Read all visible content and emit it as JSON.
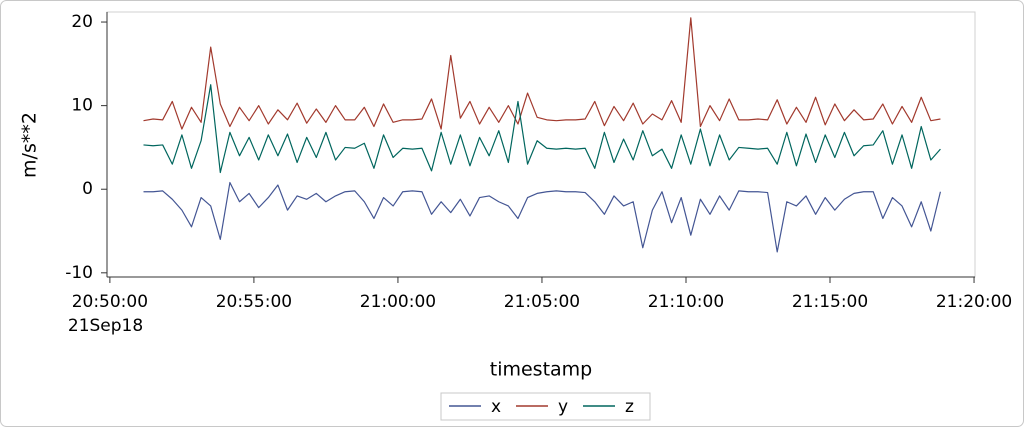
{
  "chart_data": {
    "type": "line",
    "xlabel": "timestamp",
    "ylabel": "m/s**2",
    "x": [
      "20:51:10",
      "20:51:30",
      "20:51:50",
      "20:52:10",
      "20:52:30",
      "20:52:50",
      "20:53:10",
      "20:53:30",
      "20:53:50",
      "20:54:10",
      "20:54:30",
      "20:54:50",
      "20:55:10",
      "20:55:30",
      "20:55:50",
      "20:56:10",
      "20:56:30",
      "20:56:50",
      "20:57:10",
      "20:57:30",
      "20:57:50",
      "20:58:10",
      "20:58:30",
      "20:58:50",
      "20:59:10",
      "20:59:30",
      "20:59:50",
      "21:00:10",
      "21:00:30",
      "21:00:50",
      "21:01:10",
      "21:01:30",
      "21:01:50",
      "21:02:10",
      "21:02:30",
      "21:02:50",
      "21:03:10",
      "21:03:30",
      "21:03:50",
      "21:04:10",
      "21:04:30",
      "21:04:50",
      "21:05:10",
      "21:05:30",
      "21:05:50",
      "21:06:10",
      "21:06:30",
      "21:06:50",
      "21:07:10",
      "21:07:30",
      "21:07:50",
      "21:08:10",
      "21:08:30",
      "21:08:50",
      "21:09:10",
      "21:09:30",
      "21:09:50",
      "21:10:10",
      "21:10:30",
      "21:10:50",
      "21:11:10",
      "21:11:30",
      "21:11:50",
      "21:12:10",
      "21:12:30",
      "21:12:50",
      "21:13:10",
      "21:13:30",
      "21:13:50",
      "21:14:10",
      "21:14:30",
      "21:14:50",
      "21:15:10",
      "21:15:30",
      "21:15:50",
      "21:16:10",
      "21:16:30",
      "21:16:50",
      "21:17:10",
      "21:17:30",
      "21:17:50",
      "21:18:10",
      "21:18:30",
      "21:18:50"
    ],
    "series": [
      {
        "name": "x",
        "color": "#445694",
        "values": [
          -0.3,
          -0.3,
          -0.2,
          -1.2,
          -2.5,
          -4.5,
          -1.0,
          -2.0,
          -6.0,
          0.8,
          -1.5,
          -0.5,
          -2.2,
          -1.0,
          0.5,
          -2.5,
          -0.8,
          -1.2,
          -0.5,
          -1.5,
          -0.8,
          -0.3,
          -0.2,
          -1.5,
          -3.5,
          -1.0,
          -2.0,
          -0.3,
          -0.2,
          -0.3,
          -3.0,
          -1.5,
          -2.8,
          -1.2,
          -3.2,
          -1.0,
          -0.8,
          -1.5,
          -2.0,
          -3.5,
          -1.0,
          -0.5,
          -0.3,
          -0.2,
          -0.3,
          -0.3,
          -0.4,
          -1.5,
          -3.0,
          -0.8,
          -2.0,
          -1.5,
          -7.0,
          -2.5,
          -0.3,
          -4.0,
          -1.0,
          -5.5,
          -1.2,
          -3.0,
          -0.8,
          -2.5,
          -0.2,
          -0.3,
          -0.3,
          -0.4,
          -7.5,
          -1.5,
          -2.0,
          -0.8,
          -3.0,
          -1.0,
          -2.5,
          -1.2,
          -0.5,
          -0.3,
          -0.3,
          -3.5,
          -1.0,
          -2.0,
          -4.5,
          -1.5,
          -5.0,
          -0.3
        ]
      },
      {
        "name": "y",
        "color": "#a23a2e",
        "values": [
          8.2,
          8.4,
          8.3,
          10.5,
          7.2,
          9.8,
          8.0,
          17.0,
          10.2,
          7.5,
          9.8,
          8.2,
          10.0,
          7.8,
          9.5,
          8.3,
          10.3,
          7.9,
          9.6,
          8.0,
          10.0,
          8.3,
          8.3,
          9.8,
          7.5,
          10.2,
          8.0,
          8.3,
          8.3,
          8.4,
          10.8,
          7.2,
          16.0,
          8.5,
          10.5,
          7.8,
          9.8,
          8.0,
          10.0,
          7.8,
          11.5,
          8.6,
          8.3,
          8.2,
          8.3,
          8.3,
          8.4,
          10.5,
          7.6,
          9.9,
          8.2,
          10.3,
          7.8,
          9.0,
          8.3,
          10.6,
          8.0,
          20.5,
          7.5,
          10.0,
          8.2,
          10.8,
          8.3,
          8.3,
          8.4,
          8.3,
          10.7,
          7.8,
          9.8,
          8.0,
          11.0,
          7.7,
          10.2,
          8.2,
          9.5,
          8.3,
          8.4,
          10.2,
          7.8,
          9.9,
          8.0,
          11.0,
          8.2,
          8.4
        ]
      },
      {
        "name": "z",
        "color": "#01665e",
        "values": [
          5.3,
          5.2,
          5.3,
          3.0,
          6.5,
          2.5,
          5.8,
          12.5,
          2.0,
          6.8,
          4.0,
          6.2,
          3.5,
          6.5,
          4.0,
          6.6,
          3.2,
          6.2,
          3.8,
          6.8,
          3.5,
          5.0,
          4.9,
          5.5,
          2.5,
          6.5,
          3.8,
          4.9,
          4.8,
          4.9,
          2.2,
          6.8,
          3.0,
          6.5,
          2.8,
          6.2,
          4.0,
          7.0,
          3.2,
          10.5,
          3.0,
          5.8,
          4.9,
          4.8,
          4.9,
          4.8,
          4.9,
          2.5,
          6.8,
          3.2,
          6.0,
          3.5,
          7.0,
          4.0,
          4.8,
          2.5,
          6.5,
          3.0,
          7.2,
          2.8,
          6.5,
          3.5,
          5.0,
          4.9,
          4.8,
          4.9,
          3.0,
          6.8,
          2.8,
          6.6,
          3.2,
          6.5,
          3.8,
          6.8,
          4.0,
          5.2,
          5.3,
          7.0,
          3.0,
          6.5,
          2.5,
          7.5,
          3.5,
          4.8
        ]
      }
    ],
    "xlim": [
      "20:49:54",
      "21:20:02"
    ],
    "xticks": [
      "20:50:00",
      "20:55:00",
      "21:00:00",
      "21:05:00",
      "21:10:00",
      "21:15:00",
      "21:20:00"
    ],
    "xtick_sublabel": "21Sep18",
    "ylim": [
      -10.5,
      21.2
    ],
    "yticks": [
      -10,
      0,
      10,
      20
    ]
  }
}
